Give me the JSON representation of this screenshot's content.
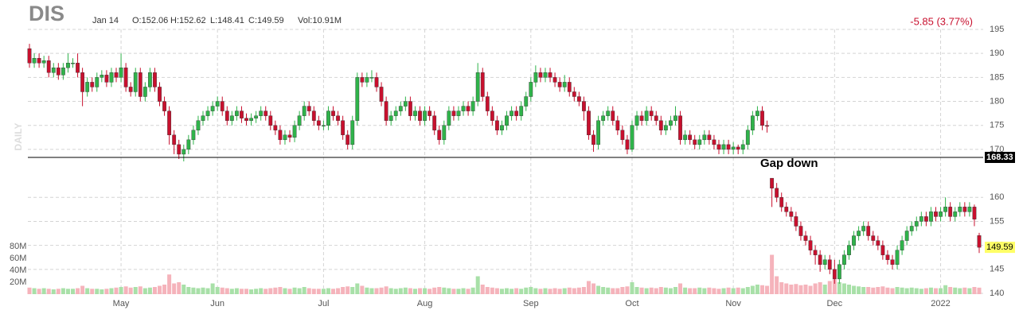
{
  "chart_data": {
    "type": "candlestick",
    "title": "DIS",
    "date_label": "Jan 14",
    "ohlc_labels": [
      "O:152.06",
      "H:152.62",
      "L:148.41",
      "C:149.59",
      "Vol:10.91M"
    ],
    "change_label": "-5.85 (3.77%)",
    "y_label": "DAILY",
    "annotation": "Gap down",
    "hline": 168.33,
    "last_price": 149.59,
    "up_color": "#2fb34a",
    "down_color": "#c8102e",
    "volume_up_color": "#a8e0a8",
    "volume_down_color": "#f5b3bb",
    "grid": true,
    "ylim": [
      140,
      195
    ],
    "yticks": [
      140,
      145,
      150,
      155,
      160,
      170,
      175,
      180,
      185,
      190,
      195
    ],
    "volume_lim": [
      0,
      80
    ],
    "volume_ticks": [
      {
        "value": 20,
        "label": "20M"
      },
      {
        "value": 40,
        "label": "40M"
      },
      {
        "value": 60,
        "label": "60M"
      },
      {
        "value": 80,
        "label": "80M"
      }
    ],
    "categories": [
      null,
      null,
      null,
      null,
      null,
      null,
      null,
      null,
      null,
      null,
      null,
      null,
      null,
      null,
      null,
      null,
      null,
      null,
      null,
      "May",
      null,
      null,
      null,
      null,
      null,
      null,
      null,
      null,
      null,
      null,
      null,
      null,
      null,
      null,
      null,
      null,
      null,
      null,
      null,
      "Jun",
      null,
      null,
      null,
      null,
      null,
      null,
      null,
      null,
      null,
      null,
      null,
      null,
      null,
      null,
      null,
      null,
      null,
      null,
      null,
      null,
      null,
      "Jul",
      null,
      null,
      null,
      null,
      null,
      null,
      null,
      null,
      null,
      null,
      null,
      null,
      null,
      null,
      null,
      null,
      null,
      null,
      null,
      null,
      "Aug",
      null,
      null,
      null,
      null,
      null,
      null,
      null,
      null,
      null,
      null,
      null,
      null,
      null,
      null,
      null,
      null,
      null,
      null,
      null,
      null,
      null,
      "Sep",
      null,
      null,
      null,
      null,
      null,
      null,
      null,
      null,
      null,
      null,
      null,
      null,
      null,
      null,
      null,
      null,
      null,
      null,
      null,
      null,
      "Oct",
      null,
      null,
      null,
      null,
      null,
      null,
      null,
      null,
      null,
      null,
      null,
      null,
      null,
      null,
      null,
      null,
      null,
      null,
      null,
      null,
      "Nov",
      null,
      null,
      null,
      null,
      null,
      null,
      null,
      null,
      null,
      null,
      null,
      null,
      null,
      null,
      null,
      null,
      null,
      null,
      null,
      null,
      "Dec",
      null,
      null,
      null,
      null,
      null,
      null,
      null,
      null,
      null,
      null,
      null,
      null,
      null,
      null,
      null,
      null,
      null,
      null,
      null,
      null,
      null,
      "2022",
      null,
      null,
      null,
      null,
      null,
      null,
      null,
      null
    ],
    "open": [
      191,
      188,
      189,
      188,
      188.5,
      186,
      187,
      185.5,
      187,
      188,
      188,
      186,
      182,
      184,
      183,
      185,
      185.5,
      184,
      186,
      185,
      187,
      183,
      182,
      186,
      181,
      183,
      186,
      183,
      180,
      178,
      173,
      171,
      169,
      170,
      172,
      174,
      176,
      177,
      178,
      179,
      180,
      178,
      176,
      177,
      178,
      176.5,
      176,
      176.5,
      177,
      178,
      177,
      175,
      174,
      172,
      173,
      172.5,
      175,
      177,
      179,
      178,
      176,
      175,
      175,
      178,
      177,
      176,
      173,
      171,
      176,
      185,
      184,
      185,
      185,
      183,
      180,
      176,
      177,
      178,
      179,
      180,
      177,
      178,
      176,
      178,
      177,
      174,
      172,
      175,
      178,
      177,
      178,
      179,
      178,
      180,
      186,
      181,
      178,
      176,
      174,
      175,
      177,
      178,
      177,
      179,
      181,
      184,
      186,
      185,
      186,
      185,
      184,
      183,
      184,
      182,
      181,
      180,
      178,
      173,
      171,
      176,
      177,
      178,
      176,
      174,
      172,
      170,
      175,
      177,
      176,
      178,
      177,
      176,
      174,
      175,
      176,
      177,
      172,
      173,
      172,
      171,
      172,
      173,
      172,
      171,
      170,
      171,
      170,
      170.5,
      170,
      171,
      174,
      177,
      178,
      175,
      164,
      161.9,
      160,
      158,
      157,
      156,
      154,
      152,
      151,
      149,
      148,
      146,
      147,
      145,
      143,
      146,
      148,
      150,
      152,
      153,
      154,
      152,
      151,
      150,
      148,
      147,
      146,
      149,
      151,
      153,
      154,
      155,
      156,
      155,
      157,
      156,
      157,
      158,
      156,
      157,
      158,
      157,
      158,
      152.06
    ],
    "high": [
      192,
      190,
      190,
      189.5,
      189.5,
      188,
      188,
      188,
      190,
      189,
      190,
      187,
      185,
      185,
      186,
      186.5,
      186.5,
      187,
      187,
      190,
      188,
      184,
      187,
      187,
      184,
      187,
      187,
      184,
      181,
      179,
      174,
      172,
      171,
      173,
      175,
      177,
      178,
      179,
      180,
      181,
      181,
      179,
      178,
      179,
      179,
      177.5,
      177.5,
      178,
      179,
      179,
      178,
      176,
      175,
      174,
      174,
      176,
      178,
      180,
      180,
      179,
      177,
      176,
      179,
      179,
      178,
      177,
      174,
      177,
      186,
      186,
      186,
      186.5,
      186,
      184,
      181,
      178,
      179,
      180,
      181,
      181,
      179,
      179,
      179,
      179,
      178,
      175,
      176,
      179,
      179,
      179,
      180,
      180,
      181,
      188,
      187,
      182,
      179,
      177,
      176,
      178,
      179,
      179,
      180,
      182,
      185,
      187.5,
      187,
      187,
      187,
      186,
      185,
      185.5,
      185,
      183,
      182,
      181,
      179,
      174,
      177,
      178,
      179,
      179,
      177,
      175,
      173,
      176,
      178,
      178,
      179,
      179,
      178,
      177,
      176,
      177,
      179,
      178,
      174,
      174,
      173,
      173,
      174,
      174,
      173,
      172,
      172,
      172,
      171.5,
      171,
      172,
      175,
      178,
      179,
      179,
      176,
      164,
      163,
      161,
      159,
      158,
      157,
      155,
      153,
      152,
      150,
      149,
      148,
      148,
      147,
      147,
      149,
      151,
      153,
      154,
      155,
      155,
      153,
      152,
      151,
      149,
      148,
      150,
      152,
      154,
      155,
      156,
      157,
      157,
      158,
      158,
      158,
      160,
      159,
      158,
      159,
      159,
      159,
      158.5,
      152.62
    ],
    "low": [
      187,
      187,
      187,
      187,
      185,
      185,
      184.5,
      184.5,
      186,
      187,
      185,
      179,
      181,
      182,
      182,
      184,
      183,
      183,
      184,
      184,
      182,
      181,
      181,
      180,
      180,
      182,
      182,
      179,
      177,
      171,
      169,
      168,
      167.5,
      169,
      171,
      173,
      175,
      176,
      177,
      178,
      177,
      175,
      175,
      176,
      175.5,
      175,
      175,
      175.5,
      176,
      176,
      174,
      173,
      171,
      171,
      171.5,
      171.5,
      174,
      176,
      177,
      175,
      174,
      174,
      174,
      176,
      175,
      172,
      170,
      170,
      175,
      183,
      183,
      184,
      182,
      179,
      175,
      175,
      176,
      177,
      178,
      176,
      176,
      175,
      175,
      176,
      173,
      171,
      171,
      174,
      176,
      176,
      177,
      177,
      177,
      179,
      180,
      177,
      175,
      173,
      173,
      174,
      176,
      176,
      176,
      178,
      180,
      183,
      184,
      184,
      184,
      183,
      182,
      182,
      181,
      180,
      179,
      176,
      172,
      169.5,
      170,
      175,
      176,
      175,
      173,
      171,
      169,
      169.5,
      174,
      175,
      175,
      176,
      175,
      173,
      173,
      174,
      175,
      171,
      171,
      171,
      170,
      170,
      171,
      171,
      170,
      169,
      169,
      169,
      169,
      169,
      169,
      170,
      173,
      176,
      174,
      173.5,
      158,
      159,
      157,
      156,
      155,
      153,
      151,
      150,
      148,
      146,
      144.5,
      145,
      144,
      142,
      142,
      145,
      147,
      149,
      151,
      152,
      151,
      150,
      149,
      147,
      146,
      145,
      145,
      148,
      150,
      152,
      153,
      154,
      154,
      154,
      155,
      155,
      156,
      155,
      155,
      156,
      156,
      156,
      154,
      148.41
    ],
    "close": [
      188,
      189,
      188,
      188.5,
      186,
      187,
      185.5,
      187,
      188,
      188,
      186,
      182,
      184,
      183,
      185,
      185.5,
      184,
      186,
      185,
      187,
      183,
      182,
      186,
      181,
      183,
      186,
      183,
      180,
      178,
      173,
      171,
      169,
      170,
      172,
      174,
      176,
      177,
      178,
      179,
      180,
      178,
      176,
      177,
      178,
      176.5,
      176,
      176.5,
      177,
      178,
      177,
      175,
      174,
      172,
      173,
      172.5,
      175,
      177,
      179,
      178,
      176,
      175,
      175,
      178,
      177,
      176,
      173,
      171,
      176,
      185,
      184,
      185,
      185,
      183,
      180,
      176,
      177,
      178,
      179,
      180,
      177,
      178,
      176,
      178,
      177,
      174,
      172,
      175,
      178,
      177,
      178,
      179,
      178,
      180,
      186,
      181,
      178,
      176,
      174,
      175,
      177,
      178,
      177,
      179,
      181,
      184,
      186,
      185,
      186,
      185,
      184,
      183,
      184,
      182,
      181,
      180,
      178,
      173,
      171,
      176,
      177,
      178,
      176,
      174,
      172,
      170,
      175,
      177,
      176,
      178,
      177,
      176,
      174,
      175,
      176,
      177,
      172,
      173,
      172,
      171,
      172,
      173,
      172,
      171,
      170,
      171,
      170,
      170.5,
      170,
      171,
      174,
      177,
      178,
      175,
      174.8,
      161.9,
      160,
      158,
      157,
      156,
      154,
      152,
      151,
      149,
      148,
      146,
      147,
      145,
      143,
      146,
      148,
      150,
      152,
      153,
      154,
      152,
      151,
      150,
      148,
      147,
      146,
      149,
      151,
      153,
      154,
      155,
      156,
      155,
      157,
      156,
      157,
      158,
      156,
      157,
      158,
      157,
      158,
      155.44,
      149.59
    ],
    "volume": [
      11,
      10,
      9,
      10,
      9,
      8,
      9,
      10,
      9,
      9,
      10,
      14,
      10,
      9,
      9,
      8,
      9,
      10,
      11,
      12,
      13,
      11,
      12,
      13,
      10,
      11,
      12,
      14,
      16,
      33,
      18,
      20,
      16,
      12,
      11,
      10,
      11,
      10,
      18,
      12,
      11,
      10,
      9,
      10,
      9,
      9,
      8,
      9,
      10,
      9,
      10,
      11,
      12,
      10,
      9,
      11,
      10,
      12,
      10,
      9,
      9,
      9,
      10,
      9,
      10,
      12,
      13,
      12,
      18,
      14,
      11,
      10,
      10,
      11,
      13,
      10,
      9,
      10,
      11,
      10,
      9,
      10,
      10,
      9,
      11,
      12,
      11,
      10,
      9,
      9,
      10,
      9,
      11,
      30,
      16,
      12,
      11,
      10,
      9,
      10,
      9,
      10,
      9,
      11,
      12,
      10,
      9,
      10,
      9,
      10,
      9,
      10,
      11,
      10,
      11,
      12,
      22,
      18,
      14,
      12,
      11,
      10,
      10,
      12,
      13,
      20,
      12,
      11,
      10,
      11,
      10,
      12,
      11,
      10,
      12,
      18,
      11,
      10,
      10,
      11,
      10,
      11,
      10,
      9,
      10,
      11,
      10,
      11,
      10,
      12,
      14,
      16,
      15,
      14,
      66,
      30,
      20,
      18,
      16,
      17,
      15,
      16,
      14,
      18,
      20,
      16,
      22,
      25,
      20,
      18,
      16,
      14,
      13,
      12,
      12,
      11,
      12,
      13,
      11,
      10,
      12,
      11,
      10,
      11,
      10,
      9,
      10,
      11,
      10,
      10,
      15,
      12,
      11,
      10,
      11,
      10,
      12,
      10.91
    ]
  }
}
